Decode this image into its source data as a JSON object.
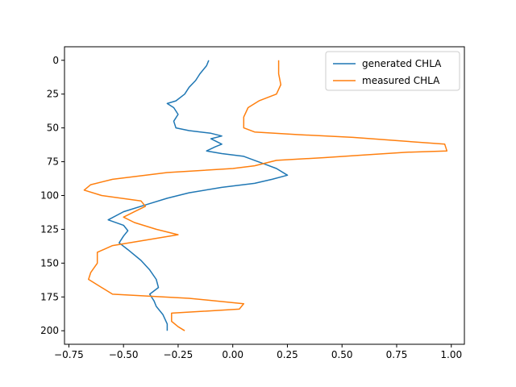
{
  "chart_data": {
    "type": "line",
    "title": "",
    "xlabel": "",
    "ylabel": "",
    "xlim": [
      -0.77,
      1.06
    ],
    "ylim": [
      210,
      -10
    ],
    "y_inverted": true,
    "grid": false,
    "legend_position": "top-right",
    "x_ticks": [
      -0.75,
      -0.5,
      -0.25,
      0.0,
      0.25,
      0.5,
      0.75,
      1.0
    ],
    "x_tick_labels": [
      "−0.75",
      "−0.50",
      "−0.25",
      "0.00",
      "0.25",
      "0.50",
      "0.75",
      "1.00"
    ],
    "y_ticks": [
      0,
      25,
      50,
      75,
      100,
      125,
      150,
      175,
      200
    ],
    "y_tick_labels": [
      "0",
      "25",
      "50",
      "75",
      "100",
      "125",
      "150",
      "175",
      "200"
    ],
    "series": [
      {
        "name": "generated CHLA",
        "color": "#1f77b4",
        "points": [
          [
            -0.11,
            0
          ],
          [
            -0.12,
            4
          ],
          [
            -0.15,
            10
          ],
          [
            -0.17,
            15
          ],
          [
            -0.2,
            20
          ],
          [
            -0.22,
            25
          ],
          [
            -0.26,
            30
          ],
          [
            -0.3,
            32
          ],
          [
            -0.27,
            35
          ],
          [
            -0.25,
            40
          ],
          [
            -0.27,
            45
          ],
          [
            -0.26,
            50
          ],
          [
            -0.2,
            52
          ],
          [
            -0.1,
            54
          ],
          [
            -0.05,
            56
          ],
          [
            -0.1,
            58
          ],
          [
            -0.05,
            62
          ],
          [
            -0.08,
            64
          ],
          [
            -0.12,
            67
          ],
          [
            -0.05,
            69
          ],
          [
            0.05,
            71
          ],
          [
            0.1,
            74
          ],
          [
            0.15,
            77
          ],
          [
            0.2,
            80
          ],
          [
            0.25,
            85
          ],
          [
            0.18,
            88
          ],
          [
            0.1,
            91
          ],
          [
            -0.05,
            94
          ],
          [
            -0.2,
            98
          ],
          [
            -0.3,
            102
          ],
          [
            -0.4,
            107
          ],
          [
            -0.5,
            112
          ],
          [
            -0.57,
            118
          ],
          [
            -0.5,
            122
          ],
          [
            -0.48,
            126
          ],
          [
            -0.5,
            130
          ],
          [
            -0.52,
            135
          ],
          [
            -0.48,
            140
          ],
          [
            -0.42,
            148
          ],
          [
            -0.38,
            155
          ],
          [
            -0.35,
            162
          ],
          [
            -0.34,
            168
          ],
          [
            -0.38,
            173
          ],
          [
            -0.36,
            178
          ],
          [
            -0.35,
            182
          ],
          [
            -0.32,
            188
          ],
          [
            -0.3,
            195
          ],
          [
            -0.3,
            200
          ]
        ]
      },
      {
        "name": "measured CHLA",
        "color": "#ff7f0e",
        "points": [
          [
            0.21,
            0
          ],
          [
            0.21,
            10
          ],
          [
            0.22,
            18
          ],
          [
            0.2,
            25
          ],
          [
            0.12,
            30
          ],
          [
            0.07,
            35
          ],
          [
            0.05,
            42
          ],
          [
            0.05,
            50
          ],
          [
            0.1,
            53
          ],
          [
            0.3,
            55
          ],
          [
            0.55,
            57
          ],
          [
            0.8,
            60
          ],
          [
            0.97,
            62
          ],
          [
            0.98,
            67
          ],
          [
            0.8,
            68
          ],
          [
            0.6,
            70
          ],
          [
            0.42,
            72
          ],
          [
            0.2,
            74
          ],
          [
            0.1,
            78
          ],
          [
            0.0,
            80
          ],
          [
            -0.3,
            83
          ],
          [
            -0.55,
            88
          ],
          [
            -0.65,
            92
          ],
          [
            -0.68,
            96
          ],
          [
            -0.6,
            100
          ],
          [
            -0.42,
            104
          ],
          [
            -0.4,
            108
          ],
          [
            -0.45,
            112
          ],
          [
            -0.5,
            116
          ],
          [
            -0.45,
            120
          ],
          [
            -0.35,
            125
          ],
          [
            -0.25,
            129
          ],
          [
            -0.4,
            133
          ],
          [
            -0.55,
            137
          ],
          [
            -0.62,
            142
          ],
          [
            -0.62,
            150
          ],
          [
            -0.65,
            157
          ],
          [
            -0.66,
            162
          ],
          [
            -0.6,
            168
          ],
          [
            -0.55,
            173
          ],
          [
            -0.2,
            176
          ],
          [
            0.05,
            180
          ],
          [
            0.03,
            184
          ],
          [
            -0.28,
            187
          ],
          [
            -0.28,
            193
          ],
          [
            -0.25,
            197
          ],
          [
            -0.22,
            200
          ]
        ]
      }
    ]
  }
}
